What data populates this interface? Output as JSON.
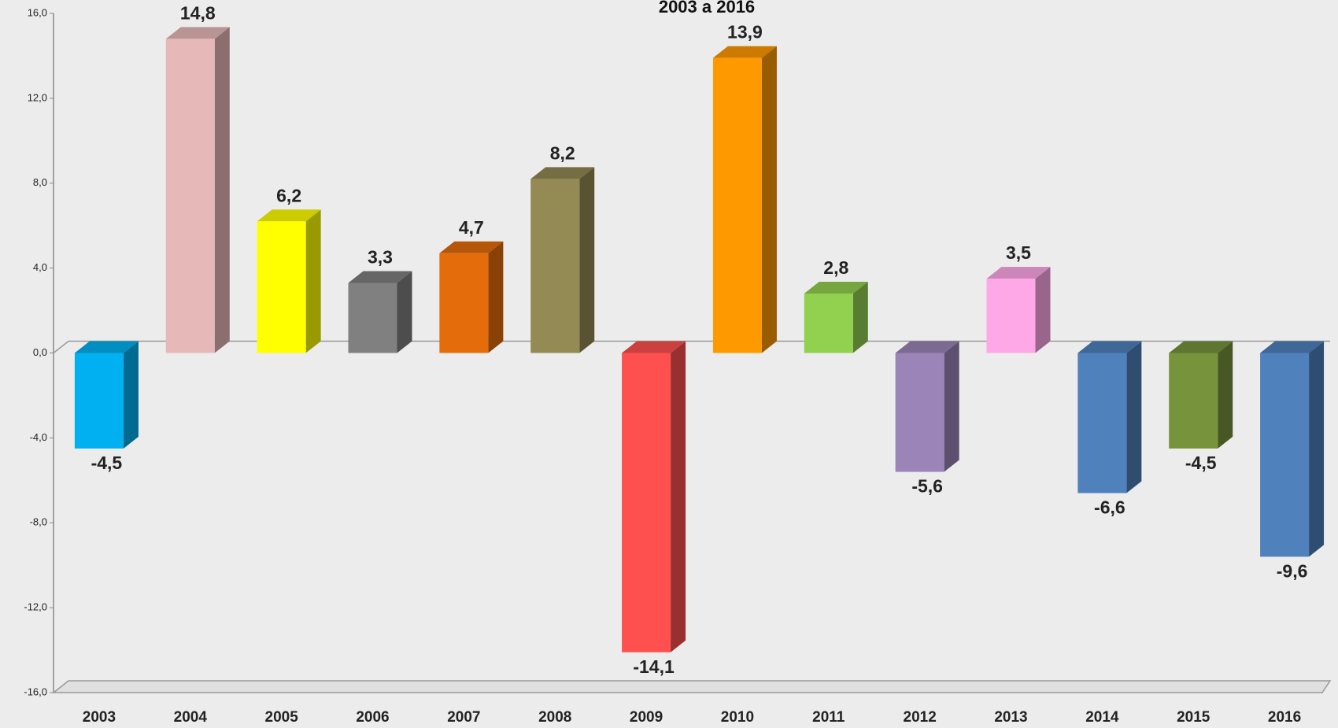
{
  "chart_data": {
    "type": "bar3d",
    "title": "2003 a 2016",
    "categories": [
      "2003",
      "2004",
      "2005",
      "2006",
      "2007",
      "2008",
      "2009",
      "2010",
      "2011",
      "2012",
      "2013",
      "2014",
      "2015",
      "2016"
    ],
    "values": [
      -4.5,
      14.8,
      6.2,
      3.3,
      4.7,
      8.2,
      -14.1,
      13.9,
      2.8,
      -5.6,
      3.5,
      -6.6,
      -4.5,
      -9.6
    ],
    "value_labels": [
      "-4,5",
      "14,8",
      "6,2",
      "3,3",
      "4,7",
      "8,2",
      "-14,1",
      "13,9",
      "2,8",
      "-5,6",
      "3,5",
      "-6,6",
      "-4,5",
      "-9,6"
    ],
    "colors": [
      "#00b0f0",
      "#e6b9b8",
      "#ffff00",
      "#808080",
      "#e46c0a",
      "#948a54",
      "#ff5050",
      "#ff9900",
      "#92d050",
      "#9b84b8",
      "#ffa8e8",
      "#4f81bd",
      "#77933c",
      "#4f81bd"
    ],
    "ylim": [
      -16,
      16
    ],
    "yticks": [
      {
        "value": -16,
        "label": "-16,0"
      },
      {
        "value": -12,
        "label": "-12,0"
      },
      {
        "value": -8,
        "label": "-8,0"
      },
      {
        "value": -4,
        "label": "-4,0"
      },
      {
        "value": 0,
        "label": "0,0"
      },
      {
        "value": 4,
        "label": "4,0"
      },
      {
        "value": 8,
        "label": "8,0"
      },
      {
        "value": 12,
        "label": "12,0"
      },
      {
        "value": 16,
        "label": "16,0"
      }
    ]
  }
}
